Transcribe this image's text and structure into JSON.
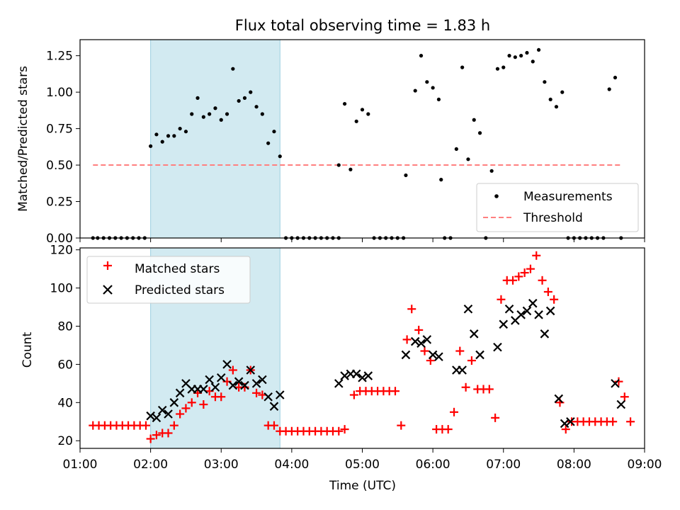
{
  "chart_data": [
    {
      "type": "scatter",
      "title": "Flux total observing time = 1.83 h",
      "ylabel": "Matched/Predicted stars",
      "xlabel": "",
      "xlim": [
        "01:00",
        "09:00"
      ],
      "ylim": [
        0,
        1.36
      ],
      "yticks": [
        "0.00",
        "0.25",
        "0.50",
        "0.75",
        "1.00",
        "1.25"
      ],
      "shaded_region": {
        "from": "02:00",
        "to": "03:50",
        "color": "#a8d8e2"
      },
      "legend": {
        "position": "lower-right",
        "entries": [
          "Measurements",
          "Threshold"
        ]
      },
      "series": [
        {
          "name": "Measurements",
          "color": "#000000",
          "marker": "dot",
          "x": [
            "01:11",
            "01:15",
            "01:20",
            "01:25",
            "01:30",
            "01:35",
            "01:40",
            "01:45",
            "01:50",
            "01:55",
            "02:00",
            "02:05",
            "02:10",
            "02:15",
            "02:20",
            "02:25",
            "02:30",
            "02:35",
            "02:40",
            "02:45",
            "02:50",
            "02:55",
            "03:00",
            "03:05",
            "03:10",
            "03:15",
            "03:20",
            "03:25",
            "03:30",
            "03:35",
            "03:40",
            "03:45",
            "03:50",
            "03:55",
            "04:00",
            "04:05",
            "04:10",
            "04:15",
            "04:20",
            "04:25",
            "04:30",
            "04:35",
            "04:40",
            "04:40",
            "04:45",
            "04:50",
            "04:55",
            "05:00",
            "05:05",
            "05:10",
            "05:15",
            "05:20",
            "05:25",
            "05:30",
            "05:35",
            "05:37",
            "05:45",
            "05:50",
            "05:55",
            "06:00",
            "06:05",
            "06:07",
            "06:10",
            "06:15",
            "06:20",
            "06:25",
            "06:30",
            "06:35",
            "06:40",
            "06:45",
            "06:50",
            "06:55",
            "07:00",
            "07:05",
            "07:10",
            "07:15",
            "07:20",
            "07:25",
            "07:30",
            "07:35",
            "07:40",
            "07:45",
            "07:50",
            "07:55",
            "08:00",
            "08:05",
            "08:10",
            "08:15",
            "08:20",
            "08:25",
            "08:30",
            "08:35",
            "08:40"
          ],
          "y": [
            0,
            0,
            0,
            0,
            0,
            0,
            0,
            0,
            0,
            0,
            0.63,
            0.71,
            0.66,
            0.7,
            0.7,
            0.75,
            0.73,
            0.85,
            0.96,
            0.83,
            0.85,
            0.89,
            0.81,
            0.85,
            1.16,
            0.94,
            0.96,
            1.0,
            0.9,
            0.85,
            0.65,
            0.73,
            0.56,
            0,
            0,
            0,
            0,
            0,
            0,
            0,
            0,
            0,
            0,
            0.5,
            0.92,
            0.47,
            0.8,
            0.88,
            0.85,
            0,
            0,
            0,
            0,
            0,
            0,
            0.43,
            1.01,
            1.25,
            1.07,
            1.03,
            0.95,
            0.4,
            0,
            0,
            0.61,
            1.17,
            0.54,
            0.81,
            0.72,
            0,
            0.46,
            1.16,
            1.17,
            1.25,
            1.24,
            1.25,
            1.27,
            1.21,
            1.29,
            1.07,
            0.95,
            0.9,
            1.0,
            0,
            0,
            0,
            0,
            0,
            0,
            0,
            1.02,
            1.1,
            0
          ]
        },
        {
          "name": "Threshold",
          "color": "#ff7f7f",
          "style": "dashed",
          "x": [
            "01:11",
            "08:40"
          ],
          "y": [
            0.5,
            0.5
          ]
        }
      ]
    },
    {
      "type": "scatter",
      "title": "",
      "ylabel": "Count",
      "xlabel": "Time (UTC)",
      "xlim": [
        "01:00",
        "09:00"
      ],
      "ylim": [
        16,
        121
      ],
      "yticks": [
        "20",
        "40",
        "60",
        "80",
        "100",
        "120"
      ],
      "xticks": [
        "01:00",
        "02:00",
        "03:00",
        "04:00",
        "05:00",
        "06:00",
        "07:00",
        "08:00",
        "09:00"
      ],
      "shaded_region": {
        "from": "02:00",
        "to": "03:50",
        "color": "#a8d8e2"
      },
      "legend": {
        "position": "upper-left",
        "entries": [
          "Matched stars",
          "Predicted stars"
        ]
      },
      "series": [
        {
          "name": "Matched stars",
          "color": "#ff0000",
          "marker": "plus",
          "x": [
            "01:11",
            "01:16",
            "01:21",
            "01:26",
            "01:31",
            "01:36",
            "01:41",
            "01:46",
            "01:51",
            "01:56",
            "02:00",
            "02:05",
            "02:10",
            "02:15",
            "02:20",
            "02:25",
            "02:30",
            "02:35",
            "02:40",
            "02:45",
            "02:50",
            "02:55",
            "03:00",
            "03:05",
            "03:10",
            "03:15",
            "03:20",
            "03:25",
            "03:30",
            "03:35",
            "03:40",
            "03:45",
            "03:50",
            "03:55",
            "04:00",
            "04:05",
            "04:10",
            "04:15",
            "04:20",
            "04:25",
            "04:30",
            "04:35",
            "04:40",
            "04:45",
            "04:53",
            "04:58",
            "05:03",
            "05:08",
            "05:13",
            "05:18",
            "05:23",
            "05:28",
            "05:33",
            "05:38",
            "05:42",
            "05:48",
            "05:53",
            "05:58",
            "06:03",
            "06:08",
            "06:13",
            "06:18",
            "06:23",
            "06:28",
            "06:33",
            "06:38",
            "06:43",
            "06:48",
            "06:53",
            "06:58",
            "07:03",
            "07:08",
            "07:13",
            "07:18",
            "07:23",
            "07:28",
            "07:33",
            "07:38",
            "07:43",
            "07:48",
            "07:53",
            "07:58",
            "08:03",
            "08:08",
            "08:13",
            "08:18",
            "08:23",
            "08:28",
            "08:33",
            "08:38",
            "08:43",
            "08:48"
          ],
          "y": [
            28,
            28,
            28,
            28,
            28,
            28,
            28,
            28,
            28,
            28,
            21,
            23,
            24,
            24,
            28,
            34,
            37,
            40,
            45,
            39,
            46,
            43,
            43,
            51,
            57,
            48,
            48,
            57,
            45,
            44,
            28,
            28,
            25,
            25,
            25,
            25,
            25,
            25,
            25,
            25,
            25,
            25,
            25,
            26,
            44,
            46,
            46,
            46,
            46,
            46,
            46,
            46,
            28,
            73,
            89,
            78,
            67,
            62,
            26,
            26,
            26,
            35,
            67,
            48,
            62,
            47,
            47,
            47,
            32,
            94,
            104,
            104,
            106,
            108,
            110,
            117,
            104,
            98,
            94,
            40,
            26,
            30,
            30,
            30,
            30,
            30,
            30,
            30,
            30,
            51,
            43,
            30
          ]
        },
        {
          "name": "Predicted stars",
          "color": "#000000",
          "marker": "x",
          "x": [
            "02:00",
            "02:05",
            "02:10",
            "02:15",
            "02:20",
            "02:25",
            "02:30",
            "02:35",
            "02:40",
            "02:45",
            "02:50",
            "02:55",
            "03:00",
            "03:05",
            "03:10",
            "03:15",
            "03:20",
            "03:25",
            "03:30",
            "03:35",
            "03:40",
            "03:45",
            "03:50",
            "04:40",
            "04:45",
            "04:50",
            "04:55",
            "05:00",
            "05:05",
            "05:37",
            "05:45",
            "05:50",
            "05:55",
            "06:00",
            "06:05",
            "06:20",
            "06:25",
            "06:30",
            "06:35",
            "06:40",
            "06:55",
            "07:00",
            "07:05",
            "07:10",
            "07:15",
            "07:20",
            "07:25",
            "07:30",
            "07:35",
            "07:40",
            "07:47",
            "07:52",
            "07:57",
            "08:35",
            "08:40"
          ],
          "y": [
            33,
            32,
            36,
            34,
            40,
            45,
            50,
            47,
            47,
            47,
            52,
            48,
            53,
            60,
            49,
            51,
            49,
            57,
            50,
            52,
            43,
            38,
            44,
            50,
            54,
            55,
            55,
            53,
            54,
            65,
            72,
            71,
            73,
            65,
            64,
            57,
            57,
            89,
            76,
            65,
            69,
            81,
            89,
            83,
            86,
            88,
            92,
            86,
            76,
            88,
            42,
            29,
            30,
            50,
            39
          ]
        }
      ]
    }
  ]
}
